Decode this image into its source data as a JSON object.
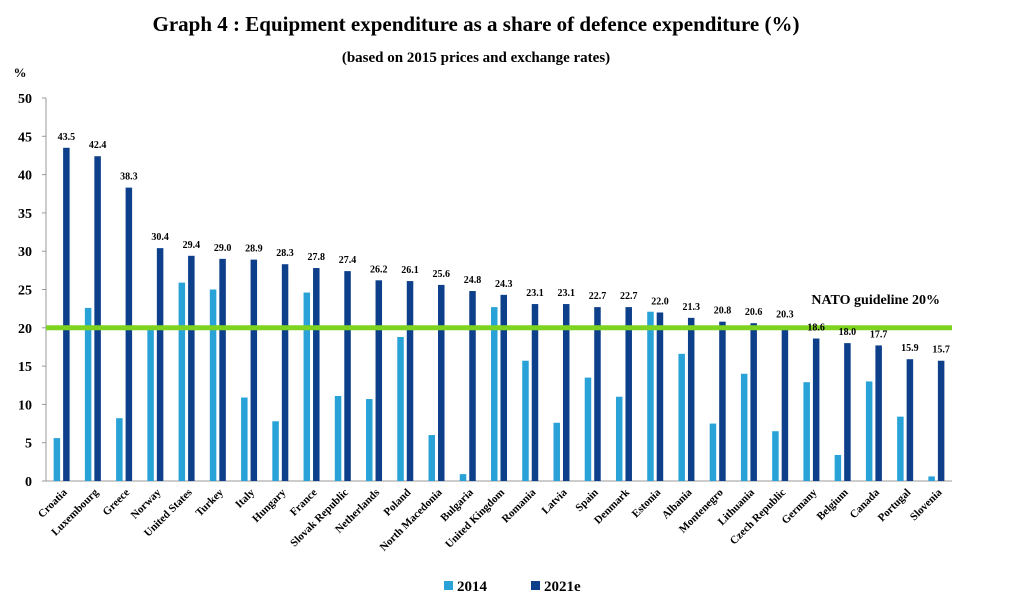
{
  "chart_data": {
    "type": "bar",
    "title": "Graph 4 : Equipment expenditure as a share of defence expenditure (%)",
    "subtitle": "(based on 2015 prices and exchange rates)",
    "ylabel": "%",
    "ylim": [
      0,
      50
    ],
    "yticks": [
      "0",
      "5",
      "10",
      "15",
      "20",
      "25",
      "30",
      "35",
      "40",
      "45",
      "50"
    ],
    "categories": [
      "Croatia",
      "Luxembourg",
      "Greece",
      "Norway",
      "United States",
      "Turkey",
      "Italy",
      "Hungary",
      "France",
      "Slovak Republic",
      "Netherlands",
      "Poland",
      "North Macedonia",
      "Bulgaria",
      "United Kingdom",
      "Romania",
      "Latvia",
      "Spain",
      "Denmark",
      "Estonia",
      "Albania",
      "Montenegro",
      "Lithuania",
      "Czech Republic",
      "Germany",
      "Belgium",
      "Canada",
      "Portugal",
      "Slovenia"
    ],
    "series": [
      {
        "name": "2014",
        "color": "#29a3d7",
        "values": [
          5.6,
          22.6,
          8.2,
          20.0,
          25.9,
          25.0,
          10.9,
          7.8,
          24.6,
          11.1,
          10.7,
          18.8,
          6.0,
          0.9,
          22.7,
          15.7,
          7.6,
          13.5,
          11.0,
          22.1,
          16.6,
          7.5,
          14.0,
          6.5,
          12.9,
          3.4,
          13.0,
          8.4,
          0.6
        ]
      },
      {
        "name": "2021e",
        "color": "#0d3f8a",
        "values": [
          43.5,
          42.4,
          38.3,
          30.4,
          29.4,
          29.0,
          28.9,
          28.3,
          27.8,
          27.4,
          26.2,
          26.1,
          25.6,
          24.8,
          24.3,
          23.1,
          23.1,
          22.7,
          22.7,
          22.0,
          21.3,
          20.8,
          20.6,
          20.3,
          18.6,
          18.0,
          17.7,
          15.9,
          15.7
        ],
        "labels": [
          "43.5",
          "42.4",
          "38.3",
          "30.4",
          "29.4",
          "29.0",
          "28.9",
          "28.3",
          "27.8",
          "27.4",
          "26.2",
          "26.1",
          "25.6",
          "24.8",
          "24.3",
          "23.1",
          "23.1",
          "22.7",
          "22.7",
          "22.0",
          "21.3",
          "20.8",
          "20.6",
          "20.3",
          "18.6",
          "18.0",
          "17.7",
          "15.9",
          "15.7"
        ]
      }
    ],
    "reference_line": {
      "value": 20,
      "label": "NATO guideline 20%",
      "color": "#7ed321"
    },
    "legend_position": "bottom-center",
    "grid": false
  }
}
